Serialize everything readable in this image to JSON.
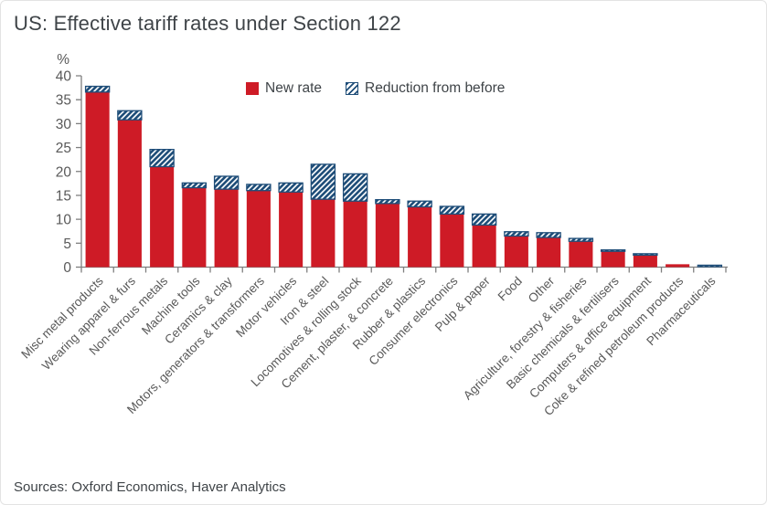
{
  "title": "US: Effective tariff rates under Section 122",
  "source": "Sources: Oxford Economics, Haver Analytics",
  "legend": {
    "new_rate_label": "New rate",
    "reduction_label": "Reduction from before"
  },
  "colors": {
    "new_rate": "#ce1b26",
    "reduction_stripe": "#1f4e79",
    "hatch_background": "#ffffff",
    "axis": "#7f7f7f",
    "tick_text": "#595959",
    "title_text": "#3f4448"
  },
  "chart_data": {
    "type": "bar",
    "stacked": true,
    "grid": false,
    "legend_position": "top-inside",
    "title": "US: Effective tariff rates under Section 122",
    "xlabel": "",
    "ylabel": "%",
    "unit": "%",
    "ylim": [
      0,
      40
    ],
    "yticks": [
      0,
      5,
      10,
      15,
      20,
      25,
      30,
      35,
      40
    ],
    "categories": [
      "Misc metal products",
      "Wearing apparel & furs",
      "Non-ferrous metals",
      "Machine tools",
      "Ceramics & clay",
      "Motors, generators & transformers",
      "Motor vehicles",
      "Iron & steel",
      "Locomotives & rolling stock",
      "Cement, plaster, & concrete",
      "Rubber & plastics",
      "Consumer electronics",
      "Pulp & paper",
      "Food",
      "Other",
      "Agriculture, forestry & fisheries",
      "Basic chemicals & fertilisers",
      "Computers & office equipment",
      "Coke & refined petroleum products",
      "Pharmaceuticals"
    ],
    "series": [
      {
        "name": "New rate",
        "style": "solid",
        "values": [
          36.6,
          30.8,
          21.0,
          16.6,
          16.3,
          16.0,
          15.7,
          14.2,
          13.8,
          13.3,
          12.6,
          11.1,
          8.8,
          6.5,
          6.2,
          5.4,
          3.3,
          2.5,
          0.6,
          0.1
        ]
      },
      {
        "name": "Reduction from before",
        "style": "hatched",
        "values": [
          1.2,
          1.9,
          3.6,
          1.0,
          2.7,
          1.3,
          1.9,
          7.3,
          5.7,
          0.8,
          1.2,
          1.6,
          2.3,
          0.9,
          1.0,
          0.6,
          0.3,
          0.3,
          0.0,
          0.3
        ]
      }
    ]
  }
}
